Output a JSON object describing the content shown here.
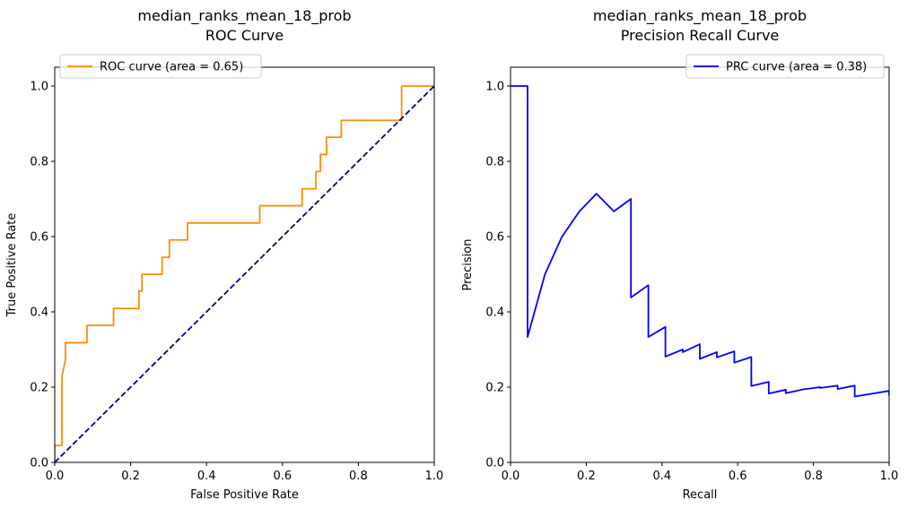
{
  "chart_data": [
    {
      "type": "line",
      "title": "median_ranks_mean_18_prob",
      "subtitle": "ROC Curve",
      "xlabel": "False Positive Rate",
      "ylabel": "True Positive Rate",
      "xlim": [
        0.0,
        1.0
      ],
      "ylim": [
        0.0,
        1.05
      ],
      "xticks": [
        "0.0",
        "0.2",
        "0.4",
        "0.6",
        "0.8",
        "1.0"
      ],
      "yticks": [
        "0.0",
        "0.2",
        "0.4",
        "0.6",
        "0.8",
        "1.0"
      ],
      "legend_position": "upper-left",
      "series": [
        {
          "name": "ROC curve (area = 0.65)",
          "color": "#ff8c00",
          "dash": "solid",
          "in_legend": true,
          "x": [
            0.0,
            0.0,
            0.019,
            0.019,
            0.019,
            0.028,
            0.028,
            0.085,
            0.085,
            0.155,
            0.155,
            0.222,
            0.222,
            0.23,
            0.23,
            0.283,
            0.283,
            0.302,
            0.302,
            0.35,
            0.35,
            0.54,
            0.54,
            0.652,
            0.652,
            0.688,
            0.688,
            0.7,
            0.7,
            0.716,
            0.716,
            0.755,
            0.755,
            0.914,
            0.914,
            1.0
          ],
          "y": [
            0.0,
            0.045,
            0.045,
            0.227,
            0.227,
            0.273,
            0.318,
            0.318,
            0.364,
            0.364,
            0.409,
            0.409,
            0.455,
            0.455,
            0.5,
            0.5,
            0.545,
            0.545,
            0.591,
            0.591,
            0.636,
            0.636,
            0.682,
            0.682,
            0.727,
            0.727,
            0.773,
            0.773,
            0.818,
            0.818,
            0.864,
            0.864,
            0.909,
            0.909,
            1.0,
            1.0
          ]
        },
        {
          "name": "chance",
          "color": "#000080",
          "dash": "dashed",
          "in_legend": false,
          "x": [
            0.0,
            1.0
          ],
          "y": [
            0.0,
            1.0
          ]
        }
      ]
    },
    {
      "type": "line",
      "title": "median_ranks_mean_18_prob",
      "subtitle": "Precision Recall Curve",
      "xlabel": "Recall",
      "ylabel": "Precision",
      "xlim": [
        0.0,
        1.0
      ],
      "ylim": [
        0.0,
        1.05
      ],
      "xticks": [
        "0.0",
        "0.2",
        "0.4",
        "0.6",
        "0.8",
        "1.0"
      ],
      "yticks": [
        "0.0",
        "0.2",
        "0.4",
        "0.6",
        "0.8",
        "1.0"
      ],
      "legend_position": "upper-right",
      "series": [
        {
          "name": "PRC curve (area = 0.38)",
          "color": "#0000ff",
          "dash": "solid",
          "in_legend": true,
          "x": [
            0.0,
            0.045,
            0.045,
            0.091,
            0.136,
            0.182,
            0.227,
            0.273,
            0.318,
            0.318,
            0.364,
            0.364,
            0.409,
            0.409,
            0.455,
            0.455,
            0.5,
            0.5,
            0.545,
            0.545,
            0.591,
            0.591,
            0.636,
            0.636,
            0.682,
            0.682,
            0.727,
            0.727,
            0.773,
            0.818,
            0.818,
            0.864,
            0.864,
            0.909,
            0.909,
            1.0,
            1.0
          ],
          "y": [
            1.0,
            1.0,
            0.333,
            0.5,
            0.6,
            0.667,
            0.714,
            0.667,
            0.7,
            0.438,
            0.471,
            0.333,
            0.36,
            0.281,
            0.3,
            0.293,
            0.314,
            0.275,
            0.293,
            0.279,
            0.295,
            0.265,
            0.28,
            0.203,
            0.214,
            0.183,
            0.193,
            0.184,
            0.194,
            0.2,
            0.198,
            0.204,
            0.195,
            0.204,
            0.175,
            0.19,
            0.177
          ]
        }
      ]
    }
  ]
}
